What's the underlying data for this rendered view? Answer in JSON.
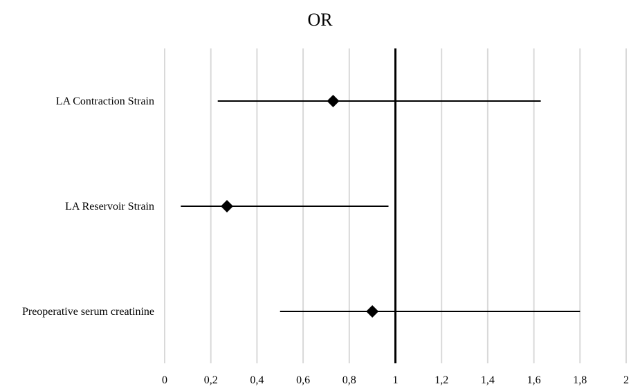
{
  "chart_data": {
    "type": "scatter",
    "title": "OR",
    "xlim": [
      0,
      2
    ],
    "xticks": [
      "0",
      "0,2",
      "0,4",
      "0,6",
      "0,8",
      "1",
      "1,2",
      "1,4",
      "1,6",
      "1,8",
      "2"
    ],
    "xtick_values": [
      0,
      0.2,
      0.4,
      0.6,
      0.8,
      1.0,
      1.2,
      1.4,
      1.6,
      1.8,
      2.0
    ],
    "reference_line": 1,
    "grid": true,
    "categories": [
      "LA Contraction Strain",
      "LA Reservoir Strain",
      "Preoperative serum creatinine"
    ],
    "points": [
      {
        "label": "LA Contraction Strain",
        "or": 0.73,
        "ci_low": 0.23,
        "ci_high": 1.63
      },
      {
        "label": "LA Reservoir Strain",
        "or": 0.27,
        "ci_low": 0.07,
        "ci_high": 0.97
      },
      {
        "label": "Preoperative serum creatinine",
        "or": 0.9,
        "ci_low": 0.5,
        "ci_high": 1.8
      }
    ],
    "colors": {
      "marker": "#000000",
      "grid": "#d9d9d9",
      "axis": "#000000"
    }
  }
}
